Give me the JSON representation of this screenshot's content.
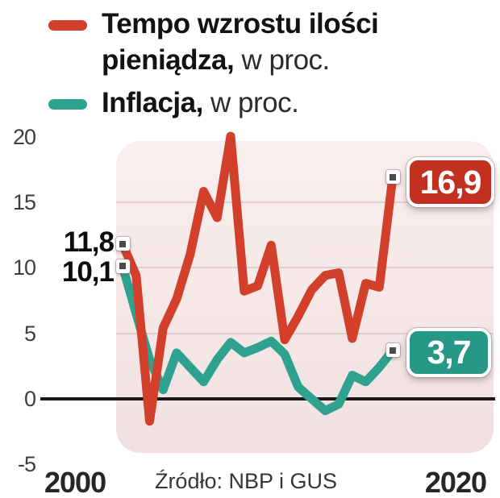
{
  "legend": {
    "money": {
      "label_bold": "Tempo wzrostu ilości pieniądza,",
      "label_rest": " w proc.",
      "color": "#d23f2b"
    },
    "inflation": {
      "label_bold": "Inflacja,",
      "label_rest": " w proc.",
      "color": "#2ea28e"
    }
  },
  "axis": {
    "y_ticks": [
      "20",
      "15",
      "10",
      "5",
      "0",
      "-5"
    ],
    "x_left": "2000",
    "x_right": "2020"
  },
  "annotations": {
    "money_start": "11,8",
    "inflation_start": "10,1",
    "money_end": "16,9",
    "inflation_end": "3,7"
  },
  "source": "Źródło: NBP i GUS",
  "colors": {
    "money_line": "#d23f2b",
    "money_badge": "#c23120",
    "inflation_line": "#2ea28e",
    "inflation_badge": "#279887",
    "plot_background": "#f6e9e8",
    "zero_line": "#1a1a1a"
  },
  "chart_data": {
    "type": "line",
    "x": [
      2000,
      2001,
      2002,
      2003,
      2004,
      2005,
      2006,
      2007,
      2008,
      2009,
      2010,
      2011,
      2012,
      2013,
      2014,
      2015,
      2016,
      2017,
      2018,
      2019,
      2020
    ],
    "series": [
      {
        "name": "Tempo wzrostu ilości pieniądza, w proc.",
        "color": "#d23f2b",
        "values": [
          11.8,
          9.4,
          -1.7,
          5.4,
          7.6,
          11.0,
          15.8,
          13.8,
          20.0,
          8.2,
          8.6,
          11.7,
          4.5,
          6.3,
          8.3,
          9.4,
          9.6,
          4.6,
          8.8,
          8.5,
          16.9
        ]
      },
      {
        "name": "Inflacja, w proc.",
        "color": "#2ea28e",
        "values": [
          10.1,
          6.5,
          3.0,
          0.7,
          3.5,
          2.4,
          1.3,
          3.0,
          4.3,
          3.5,
          3.9,
          4.4,
          3.4,
          0.9,
          0.0,
          -0.9,
          -0.4,
          1.8,
          1.3,
          2.4,
          3.7
        ]
      }
    ],
    "ylim": [
      -5,
      20
    ],
    "y_gridlines": [
      15,
      10,
      5
    ],
    "zero_baseline": true,
    "grid": "horizontal",
    "legend_position": "top-left",
    "xlabel": "",
    "ylabel": "",
    "title": ""
  }
}
